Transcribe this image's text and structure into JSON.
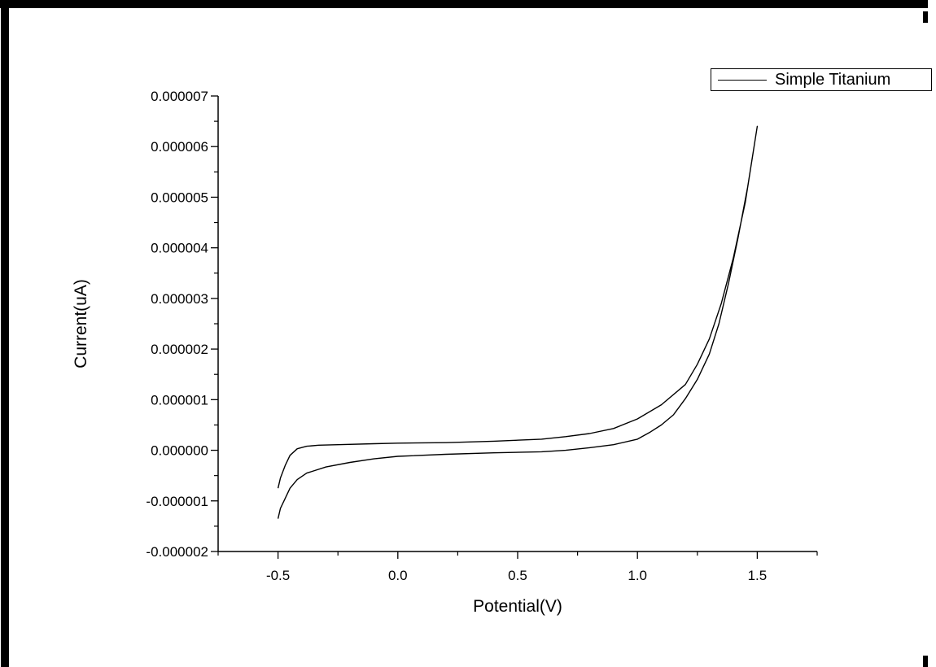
{
  "chart_data": {
    "type": "line",
    "xlabel": "Potential(V)",
    "ylabel": "Current(uA)",
    "xlim": [
      -0.75,
      1.75
    ],
    "ylim": [
      -2e-06,
      7e-06
    ],
    "x_ticks": [
      "-0.5",
      "0.0",
      "0.5",
      "1.0",
      "1.5"
    ],
    "x_tick_values": [
      -0.5,
      0.0,
      0.5,
      1.0,
      1.5
    ],
    "y_ticks": [
      "-0.000002",
      "-0.000001",
      "0.000000",
      "0.000001",
      "0.000002",
      "0.000003",
      "0.000004",
      "0.000005",
      "0.000006",
      "0.000007"
    ],
    "y_tick_values": [
      -2e-06,
      -1e-06,
      0,
      1e-06,
      2e-06,
      3e-06,
      4e-06,
      5e-06,
      6e-06,
      7e-06
    ],
    "legend_position": "top-right",
    "grid": false,
    "series": [
      {
        "name": "Simple Titanium",
        "color": "#000000",
        "x": [
          -0.5,
          -0.49,
          -0.47,
          -0.45,
          -0.42,
          -0.38,
          -0.33,
          -0.25,
          -0.1,
          0.0,
          0.2,
          0.4,
          0.6,
          0.7,
          0.8,
          0.9,
          1.0,
          1.1,
          1.2,
          1.25,
          1.3,
          1.35,
          1.4,
          1.45,
          1.5,
          1.5,
          1.46,
          1.42,
          1.38,
          1.34,
          1.3,
          1.25,
          1.2,
          1.15,
          1.1,
          1.05,
          1.0,
          0.9,
          0.8,
          0.7,
          0.6,
          0.4,
          0.2,
          0.0,
          -0.1,
          -0.2,
          -0.3,
          -0.38,
          -0.42,
          -0.45,
          -0.47,
          -0.49,
          -0.5
        ],
        "y": [
          -7.5e-07,
          -5.5e-07,
          -3e-07,
          -1e-07,
          3e-08,
          8e-08,
          1e-07,
          1.1e-07,
          1.3e-07,
          1.4e-07,
          1.5e-07,
          1.8e-07,
          2.2e-07,
          2.7e-07,
          3.3e-07,
          4.3e-07,
          6.2e-07,
          9e-07,
          1.3e-06,
          1.7e-06,
          2.2e-06,
          2.9e-06,
          3.8e-06,
          4.9e-06,
          6.4e-06,
          6.4e-06,
          5.2e-06,
          4.2e-06,
          3.3e-06,
          2.5e-06,
          1.9e-06,
          1.4e-06,
          1.02e-06,
          7e-07,
          5e-07,
          3.5e-07,
          2.2e-07,
          1.1e-07,
          5e-08,
          0.0,
          -3e-08,
          -5e-08,
          -8e-08,
          -1.2e-07,
          -1.7e-07,
          -2.4e-07,
          -3.3e-07,
          -4.5e-07,
          -5.8e-07,
          -7.5e-07,
          -9.5e-07,
          -1.15e-06,
          -1.35e-06
        ]
      }
    ]
  }
}
